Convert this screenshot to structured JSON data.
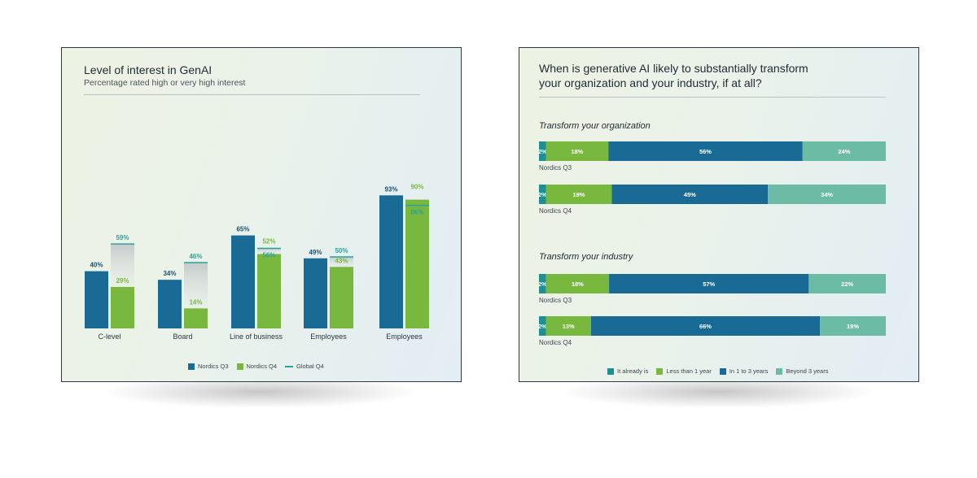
{
  "left_chart": {
    "title": "Level of interest in GenAI",
    "subtitle": "Percentage rated high or very high interest",
    "legend": [
      {
        "label": "Nordics Q3",
        "color": "#1a6a96"
      },
      {
        "label": "Nordics Q4",
        "color": "#78b83e"
      },
      {
        "label": "Global Q4",
        "color": "#2aa198"
      }
    ]
  },
  "right_chart": {
    "title_line1": "When is generative AI likely to substantially transform",
    "title_line2": "your organization and your industry, if at all?",
    "sections": [
      "Transform your organization",
      "Transform your industry"
    ],
    "row_labels": [
      "Nordics Q3",
      "Nordics Q4",
      "Nordics Q3",
      "Nordics Q4"
    ],
    "legend": [
      {
        "label": "It already is",
        "color": "#1f8f94"
      },
      {
        "label": "Less than 1 year",
        "color": "#78b83e"
      },
      {
        "label": "In 1 to 3 years",
        "color": "#1a6a96"
      },
      {
        "label": "Beyond 3 years",
        "color": "#6cbca5"
      }
    ]
  },
  "chart_data": [
    {
      "type": "bar",
      "title": "Level of interest in GenAI",
      "subtitle": "Percentage rated high or very high interest",
      "categories": [
        "C-level",
        "Board",
        "Line of business",
        "Employees",
        "Employees"
      ],
      "series": [
        {
          "name": "Nordics Q3",
          "values": [
            40,
            34,
            65,
            49,
            93
          ],
          "labels": [
            "40%",
            "34%",
            "65%",
            "49%",
            "93%"
          ],
          "color": "#1a6a96"
        },
        {
          "name": "Nordics Q4",
          "values": [
            29,
            14,
            52,
            43,
            90
          ],
          "labels": [
            "29%",
            "14%",
            "52%",
            "43%",
            "90%"
          ],
          "color": "#78b83e"
        },
        {
          "name": "Global Q4",
          "values": [
            59,
            46,
            56,
            50,
            86
          ],
          "labels": [
            "59%",
            "46%",
            "56%",
            "50%",
            "86%"
          ],
          "color": "#2aa198"
        }
      ],
      "ylim": [
        0,
        100
      ],
      "grid": false,
      "legend_position": "bottom"
    },
    {
      "type": "bar",
      "stacked": true,
      "orientation": "horizontal",
      "title": "When is generative AI likely to substantially transform your organization and your industry, if at all?",
      "groups": [
        {
          "name": "Transform your organization",
          "rows": [
            {
              "label": "Nordics Q3",
              "values": [
                2,
                18,
                56,
                24
              ],
              "labels": [
                "2%",
                "18%",
                "56%",
                "24%"
              ]
            },
            {
              "label": "Nordics Q4",
              "values": [
                2,
                19,
                45,
                34
              ],
              "labels": [
                "2%",
                "19%",
                "45%",
                "34%"
              ]
            }
          ]
        },
        {
          "name": "Transform your industry",
          "rows": [
            {
              "label": "Nordics Q3",
              "values": [
                2,
                18,
                57,
                22
              ],
              "labels": [
                "2%",
                "18%",
                "57%",
                "22%"
              ]
            },
            {
              "label": "Nordics Q4",
              "values": [
                2,
                13,
                66,
                19
              ],
              "labels": [
                "2%",
                "13%",
                "66%",
                "19%"
              ]
            }
          ]
        }
      ],
      "series": [
        {
          "name": "It already is",
          "color": "#1f8f94"
        },
        {
          "name": "Less than 1 year",
          "color": "#78b83e"
        },
        {
          "name": "In 1 to 3 years",
          "color": "#1a6a96"
        },
        {
          "name": "Beyond 3 years",
          "color": "#6cbca5"
        }
      ],
      "legend_position": "bottom"
    }
  ]
}
